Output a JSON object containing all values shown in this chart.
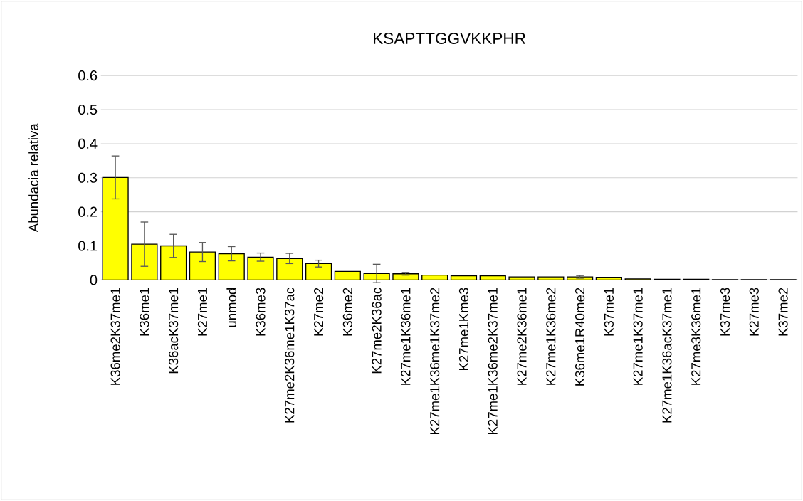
{
  "chart_data": {
    "type": "bar",
    "title": "KSAPTTGGVKKPHR",
    "ylabel": "Abundacia relativa",
    "categories": [
      "K36me2K37me1",
      "K36me1",
      "K36acK37me1",
      "K27me1",
      "unmod",
      "K36me3",
      "K27me2K36me1K37ac",
      "K27me2",
      "K36me2",
      "K27me2K36ac",
      "K27me1K36me1",
      "K27me1K36me1K37me2",
      "K27me1Kme3",
      "K27me1K36me2K37me1",
      "K27me2K36me1",
      "K27me1K36me2",
      "K36me1R40me2",
      "K37me1",
      "K27me1K37me1",
      "K27me1K36acK37me1",
      "K27me3K36me1",
      "K37me3",
      "K27me3",
      "K37me2"
    ],
    "values": [
      0.301,
      0.105,
      0.1,
      0.082,
      0.077,
      0.067,
      0.063,
      0.048,
      0.025,
      0.019,
      0.018,
      0.014,
      0.012,
      0.012,
      0.009,
      0.009,
      0.009,
      0.008,
      0.003,
      0.002,
      0.002,
      0.001,
      0.001,
      0.001
    ],
    "errors": [
      0.063,
      0.065,
      0.034,
      0.028,
      0.021,
      0.012,
      0.015,
      0.01,
      null,
      0.027,
      0.004,
      null,
      null,
      null,
      null,
      null,
      0.004,
      null,
      null,
      null,
      null,
      null,
      null,
      null
    ],
    "color": "#ffff00",
    "ylim": [
      0,
      0.6
    ],
    "yticks": [
      0,
      0.1,
      0.2,
      0.3,
      0.4,
      0.5,
      0.6
    ],
    "grid": "y"
  }
}
